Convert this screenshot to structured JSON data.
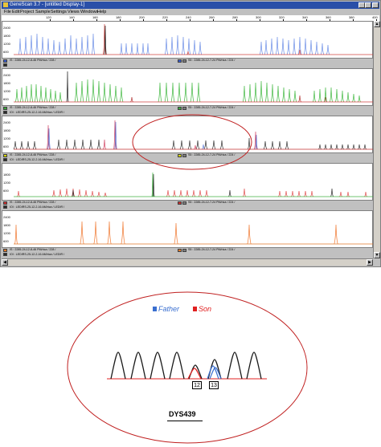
{
  "window": {
    "title": "GeneScan 3.7 - [untitled Display-1]"
  },
  "menu": [
    "File",
    "Edit",
    "Project",
    "Sample",
    "Settings",
    "Views",
    "Windows",
    "Help"
  ],
  "ruler": [
    "120",
    "140",
    "160",
    "180",
    "200",
    "220",
    "240",
    "260",
    "280",
    "300",
    "320",
    "340",
    "360",
    "380",
    "400"
  ],
  "panels": [
    {
      "id": "p1",
      "y_ticks": [
        "2400",
        "1800",
        "1200",
        "600"
      ],
      "left_label_1": "   IS : 2285-24-12-8-46 PM/rica / 228 /",
      "left_label_2": "",
      "right_label": "S5 : 2285-24-12-7-24 PM/rica / 224 /",
      "icon_colors": [
        "#3a5fd0",
        "#2a2a2a"
      ],
      "trace_colors": [
        "#6c8ee6",
        "#d0453f",
        "#1a1a1a"
      ]
    },
    {
      "id": "p2",
      "y_ticks": [
        "2400",
        "1800",
        "1200",
        "600"
      ],
      "left_label_1": "   IS : 2285-24-12-8-46 PM/rica / 228 /",
      "left_label_2": "   IOI : LEDIRS-25-12-2-16 AM/rica / LEDIR /",
      "right_label": "S5 : 2285-24-12-7-24 PM/rica / 224 /",
      "icon_colors": [
        "#3aaa3a",
        "#2a2a2a"
      ],
      "trace_colors": [
        "#40b840",
        "#b03030",
        "#1a1a1a"
      ]
    },
    {
      "id": "p3",
      "y_ticks": [
        "2400",
        "1800",
        "1200",
        "600"
      ],
      "left_label_1": "   IS : 2285-24-12-8-46 PM/rica / 228 /",
      "left_label_2": "   IOI : LEDIRS-25-12-2-16 AM/rica / LEDIR /",
      "right_label": "S5 : 2285-24-12-7-24 PM/rica / 224 /",
      "icon_colors": [
        "#d6d600",
        "#2a2a2a"
      ],
      "trace_colors": [
        "#303030",
        "#d04060",
        "#5a7ad8"
      ]
    },
    {
      "id": "p4",
      "y_ticks": [
        "1800",
        "1200",
        "600"
      ],
      "left_label_1": "   IS : 2285-24-12-8-46 PM/rica / 228 /",
      "left_label_2": "   IOI : LEDIRS-25-12-2-16 AM/rica / LEDIR /",
      "right_label": "S5 : 2285-24-12-7-24 PM/rica / 224 /",
      "icon_colors": [
        "#d03030",
        "#2a2a2a"
      ],
      "trace_colors": [
        "#e04848",
        "#2a2a2a",
        "#40b840"
      ]
    },
    {
      "id": "p5",
      "y_ticks": [
        "2400",
        "1800",
        "1200",
        "600"
      ],
      "left_label_1": "   IS : 2285-24-12-8-46 PM/rica / 228 /",
      "left_label_2": "   IOI : LEDIRS-25-12-2-16 AM/rica / LEDIR /",
      "right_label": "S5 : 2285-24-12-7-24 PM/rica / 224 /",
      "icon_colors": [
        "#e07828",
        "#2a2a2a"
      ],
      "trace_colors": [
        "#f07830",
        "#2a2a2a"
      ]
    }
  ],
  "zoom": {
    "legend": {
      "father": "Father",
      "son": "Son"
    },
    "colors": {
      "father": "#3a6fd0",
      "son": "#e02020",
      "ladder": "#1a1a1a",
      "ellipse": "#c02020"
    },
    "allele_1": "12",
    "allele_2": "13",
    "caption": "DYS439"
  }
}
